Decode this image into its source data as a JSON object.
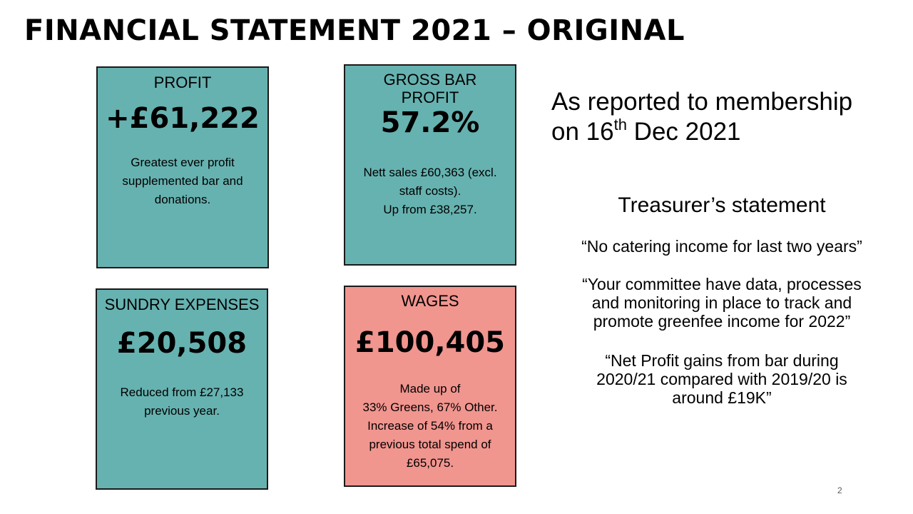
{
  "title": "FINANCIAL STATEMENT 2021 – ORIGINAL",
  "cards": {
    "profit": {
      "heading": "PROFIT",
      "value": "+£61,222",
      "desc": [
        "Greatest ever profit",
        "supplemented bar and",
        "donations."
      ],
      "color": "#66b2b0"
    },
    "gross_bar_profit": {
      "heading": [
        "GROSS BAR",
        "PROFIT"
      ],
      "value": "57.2%",
      "desc": [
        "Nett sales £60,363 (excl.",
        "staff costs).",
        "Up from £38,257."
      ],
      "color": "#66b2b0"
    },
    "sundry_expenses": {
      "heading": "SUNDRY EXPENSES",
      "value": "£20,508",
      "desc": [
        "Reduced  from £27,133",
        "previous year."
      ],
      "color": "#66b2b0"
    },
    "wages": {
      "heading": "WAGES",
      "value": "£100,405",
      "desc": [
        "Made up of",
        "33% Greens, 67% Other.",
        "Increase of 54% from a",
        "previous total spend of",
        "£65,075."
      ],
      "color": "#f1958f"
    }
  },
  "reported": {
    "line1": "As reported to membership",
    "line2_prefix": "on 16",
    "line2_sup": "th",
    "line2_suffix": " Dec 2021"
  },
  "treasurer": {
    "heading": "Treasurer’s statement",
    "quotes": [
      [
        "“No catering income for last two years”"
      ],
      [
        "“Your committee have data, processes",
        "and monitoring in place to track and",
        "promote greenfee income for 2022”"
      ],
      [
        "“Net Profit gains from bar during",
        "2020/21 compared with 2019/20 is",
        "around £19K”"
      ]
    ]
  },
  "page_number": "2"
}
